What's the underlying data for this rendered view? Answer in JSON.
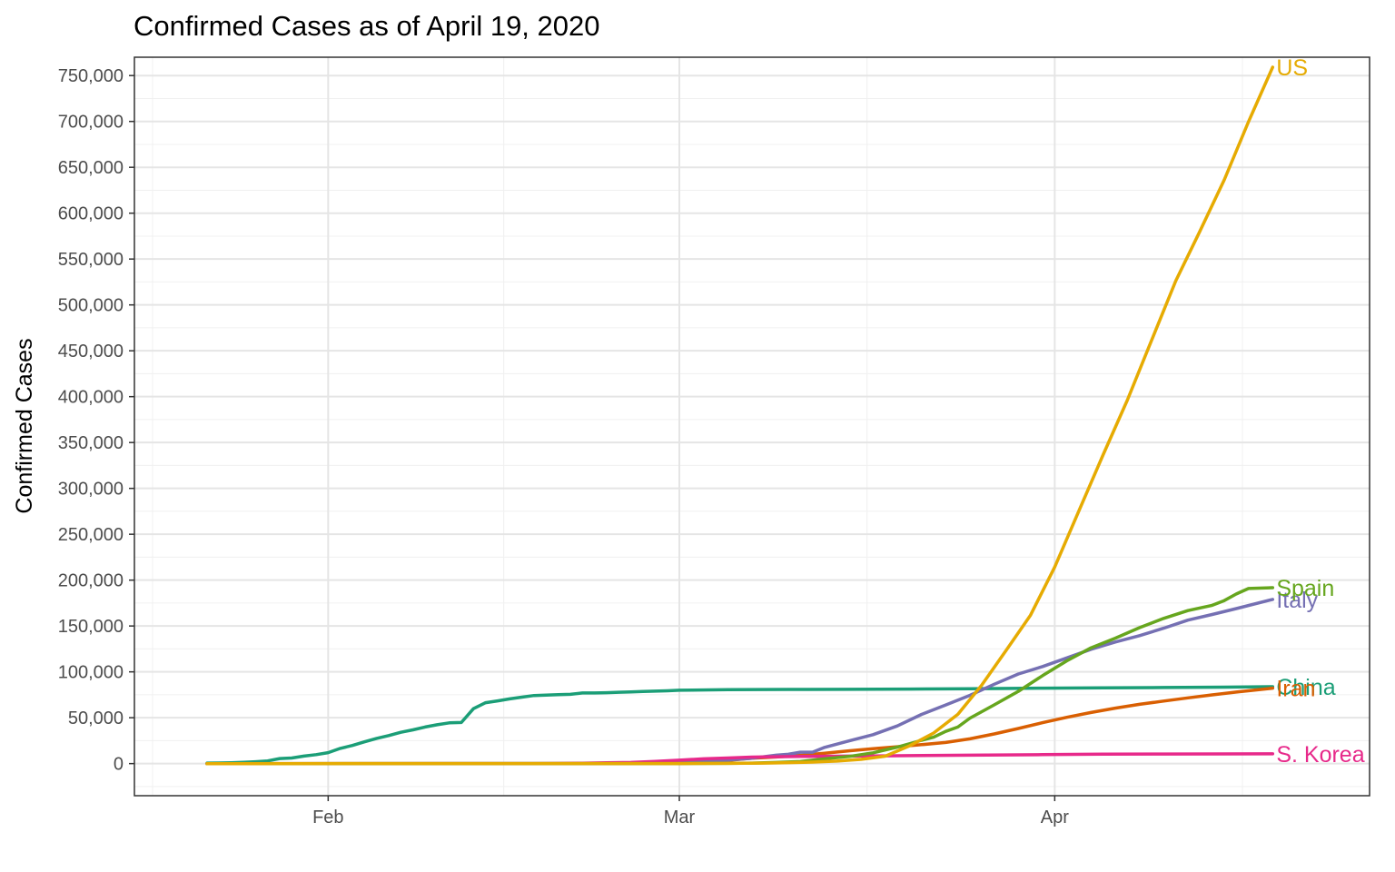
{
  "chart_data": {
    "type": "line",
    "title": "Confirmed Cases as of April 19, 2020",
    "xlabel": "",
    "ylabel": "Confirmed Cases",
    "x_range": [
      "2020-01-22",
      "2020-04-19"
    ],
    "xlim": [
      "2020-01-16",
      "2020-04-27"
    ],
    "ylim": [
      -35000,
      770000
    ],
    "y_ticks": [
      0,
      50000,
      100000,
      150000,
      200000,
      250000,
      300000,
      350000,
      400000,
      450000,
      500000,
      550000,
      600000,
      650000,
      700000,
      750000
    ],
    "y_tick_labels": [
      "0",
      "50,000",
      "100,000",
      "150,000",
      "200,000",
      "250,000",
      "300,000",
      "350,000",
      "400,000",
      "450,000",
      "500,000",
      "550,000",
      "600,000",
      "650,000",
      "700,000",
      "750,000"
    ],
    "x_ticks": [
      "2020-02-01",
      "2020-03-01",
      "2020-04-01"
    ],
    "x_tick_labels": [
      "Feb",
      "Mar",
      "Apr"
    ],
    "grid": true,
    "legend": "none (direct labels at line ends)",
    "series": [
      {
        "name": "China",
        "color": "#1B9E77",
        "points": [
          [
            "2020-01-22",
            548
          ],
          [
            "2020-01-23",
            643
          ],
          [
            "2020-01-24",
            920
          ],
          [
            "2020-01-25",
            1406
          ],
          [
            "2020-01-26",
            2075
          ],
          [
            "2020-01-27",
            2877
          ],
          [
            "2020-01-28",
            5509
          ],
          [
            "2020-01-29",
            6087
          ],
          [
            "2020-01-30",
            8141
          ],
          [
            "2020-01-31",
            9802
          ],
          [
            "2020-02-01",
            11891
          ],
          [
            "2020-02-02",
            16630
          ],
          [
            "2020-02-03",
            19716
          ],
          [
            "2020-02-04",
            23707
          ],
          [
            "2020-02-05",
            27440
          ],
          [
            "2020-02-06",
            30587
          ],
          [
            "2020-02-07",
            34110
          ],
          [
            "2020-02-08",
            36814
          ],
          [
            "2020-02-09",
            39829
          ],
          [
            "2020-02-10",
            42354
          ],
          [
            "2020-02-11",
            44386
          ],
          [
            "2020-02-12",
            44759
          ],
          [
            "2020-02-13",
            59895
          ],
          [
            "2020-02-14",
            66358
          ],
          [
            "2020-02-15",
            68413
          ],
          [
            "2020-02-16",
            70513
          ],
          [
            "2020-02-17",
            72434
          ],
          [
            "2020-02-18",
            74211
          ],
          [
            "2020-02-19",
            74619
          ],
          [
            "2020-02-20",
            75077
          ],
          [
            "2020-02-21",
            75550
          ],
          [
            "2020-02-22",
            77001
          ],
          [
            "2020-02-23",
            77022
          ],
          [
            "2020-02-24",
            77241
          ],
          [
            "2020-02-25",
            77754
          ],
          [
            "2020-02-26",
            78166
          ],
          [
            "2020-02-27",
            78600
          ],
          [
            "2020-02-28",
            78928
          ],
          [
            "2020-02-29",
            79356
          ],
          [
            "2020-03-01",
            79932
          ],
          [
            "2020-03-05",
            80573
          ],
          [
            "2020-03-10",
            80815
          ],
          [
            "2020-03-15",
            80977
          ],
          [
            "2020-03-20",
            81250
          ],
          [
            "2020-03-25",
            81661
          ],
          [
            "2020-03-31",
            82279
          ],
          [
            "2020-04-05",
            82602
          ],
          [
            "2020-04-10",
            82941
          ],
          [
            "2020-04-15",
            83356
          ],
          [
            "2020-04-19",
            83806
          ]
        ]
      },
      {
        "name": "Iran",
        "color": "#D95F02",
        "points": [
          [
            "2020-01-22",
            0
          ],
          [
            "2020-02-19",
            2
          ],
          [
            "2020-02-25",
            95
          ],
          [
            "2020-03-01",
            978
          ],
          [
            "2020-03-03",
            2336
          ],
          [
            "2020-03-05",
            3513
          ],
          [
            "2020-03-07",
            5823
          ],
          [
            "2020-03-09",
            7161
          ],
          [
            "2020-03-11",
            9000
          ],
          [
            "2020-03-13",
            11364
          ],
          [
            "2020-03-15",
            13938
          ],
          [
            "2020-03-17",
            16169
          ],
          [
            "2020-03-19",
            18407
          ],
          [
            "2020-03-21",
            20610
          ],
          [
            "2020-03-23",
            23049
          ],
          [
            "2020-03-25",
            27017
          ],
          [
            "2020-03-27",
            32332
          ],
          [
            "2020-03-29",
            38309
          ],
          [
            "2020-03-31",
            44605
          ],
          [
            "2020-04-02",
            50468
          ],
          [
            "2020-04-04",
            55743
          ],
          [
            "2020-04-06",
            60500
          ],
          [
            "2020-04-08",
            64586
          ],
          [
            "2020-04-10",
            68192
          ],
          [
            "2020-04-12",
            71686
          ],
          [
            "2020-04-14",
            74877
          ],
          [
            "2020-04-16",
            77995
          ],
          [
            "2020-04-19",
            82211
          ]
        ]
      },
      {
        "name": "Italy",
        "color": "#7570B3",
        "points": [
          [
            "2020-01-22",
            0
          ],
          [
            "2020-01-31",
            2
          ],
          [
            "2020-02-21",
            20
          ],
          [
            "2020-02-23",
            155
          ],
          [
            "2020-02-25",
            322
          ],
          [
            "2020-02-27",
            655
          ],
          [
            "2020-02-29",
            1128
          ],
          [
            "2020-03-01",
            1694
          ],
          [
            "2020-03-03",
            2502
          ],
          [
            "2020-03-05",
            3858
          ],
          [
            "2020-03-07",
            5883
          ],
          [
            "2020-03-09",
            9172
          ],
          [
            "2020-03-10",
            10149
          ],
          [
            "2020-03-11",
            12462
          ],
          [
            "2020-03-12",
            12462
          ],
          [
            "2020-03-13",
            17660
          ],
          [
            "2020-03-15",
            24747
          ],
          [
            "2020-03-17",
            31506
          ],
          [
            "2020-03-19",
            41035
          ],
          [
            "2020-03-21",
            53578
          ],
          [
            "2020-03-23",
            63927
          ],
          [
            "2020-03-25",
            74386
          ],
          [
            "2020-03-27",
            86498
          ],
          [
            "2020-03-29",
            97689
          ],
          [
            "2020-03-31",
            105792
          ],
          [
            "2020-04-02",
            115242
          ],
          [
            "2020-04-04",
            124632
          ],
          [
            "2020-04-06",
            132547
          ],
          [
            "2020-04-08",
            139422
          ],
          [
            "2020-04-10",
            147577
          ],
          [
            "2020-04-12",
            156363
          ],
          [
            "2020-04-14",
            162488
          ],
          [
            "2020-04-16",
            168941
          ],
          [
            "2020-04-19",
            178972
          ]
        ]
      },
      {
        "name": "S. Korea",
        "color": "#E7298A",
        "points": [
          [
            "2020-01-22",
            1
          ],
          [
            "2020-02-18",
            31
          ],
          [
            "2020-02-20",
            104
          ],
          [
            "2020-02-22",
            433
          ],
          [
            "2020-02-24",
            833
          ],
          [
            "2020-02-26",
            1261
          ],
          [
            "2020-02-28",
            2337
          ],
          [
            "2020-03-01",
            3736
          ],
          [
            "2020-03-03",
            5186
          ],
          [
            "2020-03-05",
            6088
          ],
          [
            "2020-03-07",
            7041
          ],
          [
            "2020-03-09",
            7478
          ],
          [
            "2020-03-11",
            7755
          ],
          [
            "2020-03-13",
            7979
          ],
          [
            "2020-03-15",
            8162
          ],
          [
            "2020-03-17",
            8320
          ],
          [
            "2020-03-20",
            8652
          ],
          [
            "2020-03-25",
            9137
          ],
          [
            "2020-03-31",
            9786
          ],
          [
            "2020-04-05",
            10237
          ],
          [
            "2020-04-10",
            10450
          ],
          [
            "2020-04-15",
            10591
          ],
          [
            "2020-04-19",
            10661
          ]
        ]
      },
      {
        "name": "Spain",
        "color": "#66A61E",
        "points": [
          [
            "2020-01-22",
            0
          ],
          [
            "2020-02-25",
            6
          ],
          [
            "2020-03-01",
            84
          ],
          [
            "2020-03-05",
            282
          ],
          [
            "2020-03-07",
            500
          ],
          [
            "2020-03-09",
            1231
          ],
          [
            "2020-03-11",
            2277
          ],
          [
            "2020-03-13",
            5232
          ],
          [
            "2020-03-15",
            7798
          ],
          [
            "2020-03-17",
            11748
          ],
          [
            "2020-03-19",
            17963
          ],
          [
            "2020-03-21",
            25374
          ],
          [
            "2020-03-22",
            28768
          ],
          [
            "2020-03-23",
            35136
          ],
          [
            "2020-03-24",
            39885
          ],
          [
            "2020-03-25",
            49515
          ],
          [
            "2020-03-27",
            64059
          ],
          [
            "2020-03-29",
            78797
          ],
          [
            "2020-03-31",
            95923
          ],
          [
            "2020-04-02",
            112065
          ],
          [
            "2020-04-04",
            126168
          ],
          [
            "2020-04-06",
            136675
          ],
          [
            "2020-04-08",
            148220
          ],
          [
            "2020-04-10",
            158273
          ],
          [
            "2020-04-12",
            166831
          ],
          [
            "2020-04-14",
            172541
          ],
          [
            "2020-04-15",
            177644
          ],
          [
            "2020-04-16",
            184948
          ],
          [
            "2020-04-17",
            190839
          ],
          [
            "2020-04-19",
            191726
          ]
        ]
      },
      {
        "name": "US",
        "color": "#E6AB02",
        "points": [
          [
            "2020-01-22",
            1
          ],
          [
            "2020-02-15",
            15
          ],
          [
            "2020-03-01",
            75
          ],
          [
            "2020-03-05",
            221
          ],
          [
            "2020-03-08",
            562
          ],
          [
            "2020-03-10",
            994
          ],
          [
            "2020-03-12",
            1663
          ],
          [
            "2020-03-14",
            2727
          ],
          [
            "2020-03-16",
            4632
          ],
          [
            "2020-03-18",
            8054
          ],
          [
            "2020-03-20",
            19273
          ],
          [
            "2020-03-22",
            33276
          ],
          [
            "2020-03-24",
            53740
          ],
          [
            "2020-03-26",
            85996
          ],
          [
            "2020-03-28",
            123578
          ],
          [
            "2020-03-30",
            161831
          ],
          [
            "2020-04-01",
            214205
          ],
          [
            "2020-04-03",
            275586
          ],
          [
            "2020-04-05",
            336802
          ],
          [
            "2020-04-07",
            396223
          ],
          [
            "2020-04-09",
            461437
          ],
          [
            "2020-04-11",
            526396
          ],
          [
            "2020-04-13",
            580619
          ],
          [
            "2020-04-15",
            636350
          ],
          [
            "2020-04-17",
            699706
          ],
          [
            "2020-04-19",
            759086
          ]
        ]
      }
    ],
    "end_labels": [
      "US",
      "Spain",
      "Italy",
      "China",
      "Iran",
      "S. Korea"
    ]
  }
}
